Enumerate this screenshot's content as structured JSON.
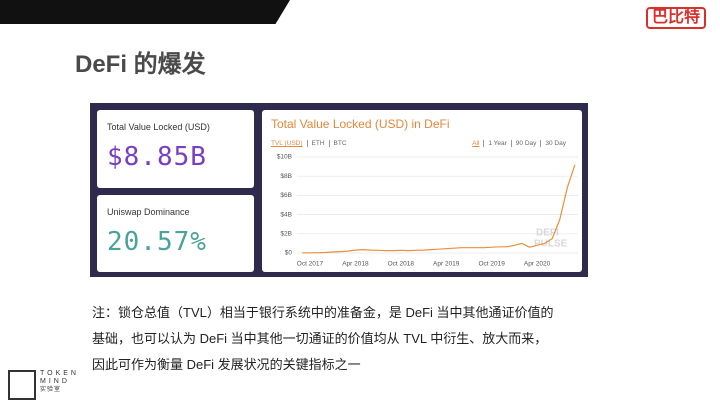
{
  "header": {
    "title": "DeFi 的爆发",
    "logo": "巴比特"
  },
  "cards": [
    {
      "label": "Total Value Locked (USD)",
      "value": "$8.85B"
    },
    {
      "label": "Uniswap Dominance",
      "value": "20.57%"
    }
  ],
  "chart_data": {
    "type": "line",
    "title": "Total Value Locked (USD) in DeFi",
    "tabs": [
      "TVL (USD)",
      "ETH",
      "BTC"
    ],
    "ranges": [
      "All",
      "1 Year",
      "90 Day",
      "30 Day"
    ],
    "watermark": [
      "DEFI",
      "PULSE"
    ],
    "categories": [
      null,
      "Oct 2017",
      null,
      null,
      null,
      null,
      null,
      "Apr 2018",
      null,
      null,
      null,
      null,
      null,
      "Oct 2018",
      null,
      null,
      null,
      null,
      null,
      "Apr 2019",
      null,
      null,
      null,
      null,
      null,
      "Oct 2019",
      null,
      null,
      null,
      null,
      null,
      "Apr 2020",
      null,
      null,
      null,
      null,
      null
    ],
    "series": [
      {
        "color": "#e8913a",
        "values": [
          0.01,
          0.02,
          0.03,
          0.05,
          0.1,
          0.15,
          0.2,
          0.3,
          0.35,
          0.3,
          0.28,
          0.25,
          0.25,
          0.28,
          0.25,
          0.28,
          0.3,
          0.35,
          0.4,
          0.45,
          0.5,
          0.55,
          0.55,
          0.55,
          0.55,
          0.6,
          0.65,
          0.65,
          0.8,
          1.0,
          0.6,
          0.8,
          1.0,
          1.5,
          3.5,
          6.8,
          9.2
        ]
      }
    ],
    "ylim": [
      0,
      10
    ],
    "yticks": [
      {
        "value": 0,
        "label": "$0"
      },
      {
        "value": 2,
        "label": "$2B"
      },
      {
        "value": 4,
        "label": "$4B"
      },
      {
        "value": 6,
        "label": "$6B"
      },
      {
        "value": 8,
        "label": "$8B"
      },
      {
        "value": 10,
        "label": "$10B"
      }
    ],
    "grid": true
  },
  "note": {
    "lines": [
      "注：锁仓总值（TVL）相当于银行系统中的准备金，是 DeFi 当中其他通证价值的",
      "基础，也可以认为 DeFi 当中其他一切通证的价值均从 TVL 中衍生、放大而来，",
      "因此可作为衡量 DeFi 发展状况的关键指标之一"
    ]
  },
  "footer": {
    "brand": [
      "TOKEN",
      "MIND"
    ],
    "sub": "实验室"
  }
}
